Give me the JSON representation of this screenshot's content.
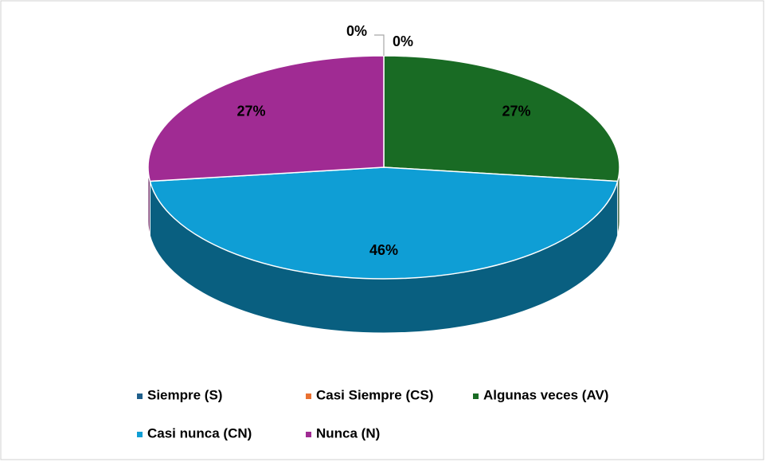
{
  "chart_data": {
    "type": "pie3d",
    "categories": [
      "Siempre (S)",
      "Casi Siempre (CS)",
      "Algunas veces (AV)",
      "Casi nunca (CN)",
      "Nunca (N)"
    ],
    "values": [
      0,
      0,
      27,
      46,
      27
    ],
    "value_labels": [
      "0%",
      "0%",
      "27%",
      "46%",
      "27%"
    ],
    "colors": [
      "#1f5f8b",
      "#e97132",
      "#196b24",
      "#0f9ed5",
      "#a02b93"
    ],
    "legend": "bottom"
  }
}
